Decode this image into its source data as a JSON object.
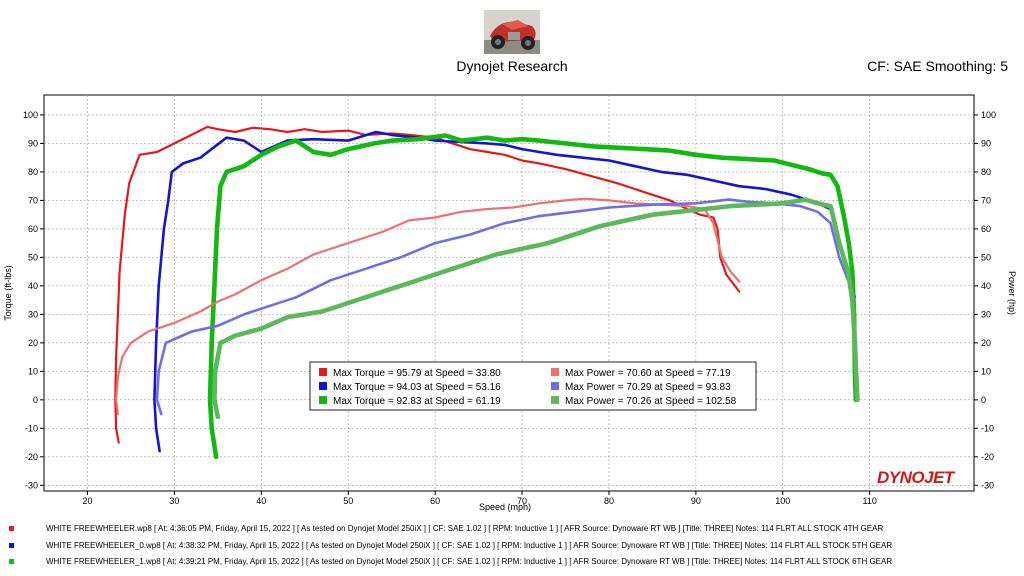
{
  "header": {
    "title": "Dynojet Research",
    "cf_info": "CF: SAE Smoothing: 5"
  },
  "logo_text": "DYNOJET",
  "colors": {
    "torque": [
      "#e41a1a",
      "#1414d2",
      "#14b814"
    ],
    "power": [
      "#f07070",
      "#6e6ee8",
      "#5cb85c"
    ]
  },
  "chart_data": {
    "type": "line",
    "xlabel": "Speed (mph)",
    "ylabel_left": "Torque (ft-lbs)",
    "ylabel_right": "Power (hp)",
    "xlim": [
      15,
      122
    ],
    "ylim": [
      -32,
      107
    ],
    "xticks": [
      20,
      30,
      40,
      50,
      60,
      70,
      80,
      90,
      100,
      110
    ],
    "yticks": [
      -30,
      -20,
      -10,
      0,
      10,
      20,
      30,
      40,
      50,
      60,
      70,
      80,
      90,
      100
    ],
    "grid": true,
    "series": [
      {
        "kind": "torque",
        "points": [
          [
            23.6,
            -15
          ],
          [
            23.3,
            -10
          ],
          [
            23.2,
            0
          ],
          [
            23.3,
            15
          ],
          [
            23.5,
            30
          ],
          [
            23.7,
            45
          ],
          [
            24.3,
            65
          ],
          [
            24.8,
            76
          ],
          [
            26,
            86
          ],
          [
            28,
            87
          ],
          [
            30,
            90
          ],
          [
            33.8,
            95.8
          ],
          [
            35,
            95
          ],
          [
            37,
            94
          ],
          [
            39,
            95.5
          ],
          [
            41,
            95
          ],
          [
            43,
            94
          ],
          [
            45,
            95
          ],
          [
            47,
            94
          ],
          [
            50,
            94.5
          ],
          [
            52,
            93
          ],
          [
            55,
            93.5
          ],
          [
            57,
            93
          ],
          [
            60,
            92
          ],
          [
            62,
            90
          ],
          [
            64,
            88
          ],
          [
            66,
            87
          ],
          [
            68,
            86
          ],
          [
            70,
            84
          ],
          [
            72,
            83
          ],
          [
            75,
            81
          ],
          [
            78,
            78.5
          ],
          [
            81,
            76
          ],
          [
            84,
            73
          ],
          [
            87,
            70
          ],
          [
            89,
            67
          ],
          [
            90.5,
            65
          ],
          [
            92,
            64
          ],
          [
            92.5,
            60
          ],
          [
            92.8,
            50
          ],
          [
            93.5,
            44
          ],
          [
            94.5,
            40
          ],
          [
            95,
            38
          ]
        ]
      },
      {
        "kind": "torque",
        "points": [
          [
            28.3,
            -18
          ],
          [
            27.9,
            -10
          ],
          [
            27.7,
            0
          ],
          [
            27.9,
            20
          ],
          [
            28.2,
            40
          ],
          [
            28.8,
            60
          ],
          [
            29.3,
            70
          ],
          [
            29.7,
            80
          ],
          [
            31,
            83
          ],
          [
            33,
            85
          ],
          [
            36,
            92
          ],
          [
            38,
            91
          ],
          [
            40,
            87
          ],
          [
            43,
            91
          ],
          [
            46,
            91.5
          ],
          [
            50,
            91
          ],
          [
            53.2,
            94
          ],
          [
            55,
            93
          ],
          [
            58,
            92
          ],
          [
            60,
            91
          ],
          [
            63,
            90.5
          ],
          [
            66,
            90
          ],
          [
            68,
            89.5
          ],
          [
            70,
            88
          ],
          [
            72,
            87
          ],
          [
            74,
            86
          ],
          [
            77,
            85
          ],
          [
            80,
            84
          ],
          [
            83,
            82
          ],
          [
            86,
            80
          ],
          [
            89,
            79
          ],
          [
            92,
            77
          ],
          [
            95,
            75
          ],
          [
            98,
            74
          ],
          [
            101,
            72
          ],
          [
            104,
            69
          ],
          [
            105.5,
            67
          ],
          [
            106.5,
            55
          ],
          [
            107.5,
            45
          ],
          [
            108,
            39
          ],
          [
            108.3,
            36
          ]
        ]
      },
      {
        "kind": "torque",
        "points": [
          [
            34.8,
            -20
          ],
          [
            34.3,
            -10
          ],
          [
            34.1,
            0
          ],
          [
            34.3,
            20
          ],
          [
            34.6,
            40
          ],
          [
            34.9,
            60
          ],
          [
            35.3,
            75
          ],
          [
            36,
            80
          ],
          [
            38,
            82
          ],
          [
            40,
            86
          ],
          [
            42,
            89
          ],
          [
            44,
            91
          ],
          [
            46,
            87
          ],
          [
            48,
            86
          ],
          [
            50,
            88
          ],
          [
            53,
            90
          ],
          [
            55,
            91
          ],
          [
            58,
            91.5
          ],
          [
            61.2,
            92.8
          ],
          [
            63,
            91
          ],
          [
            66,
            92
          ],
          [
            68,
            91
          ],
          [
            70,
            91.5
          ],
          [
            72,
            91
          ],
          [
            75,
            90
          ],
          [
            78,
            89
          ],
          [
            81,
            88.5
          ],
          [
            84,
            88
          ],
          [
            87,
            87.5
          ],
          [
            90,
            86
          ],
          [
            93,
            85
          ],
          [
            96,
            84.5
          ],
          [
            99,
            84
          ],
          [
            101,
            82.5
          ],
          [
            103,
            81
          ],
          [
            104.5,
            79.5
          ],
          [
            105.5,
            79
          ],
          [
            106.3,
            75
          ],
          [
            107,
            65
          ],
          [
            107.6,
            55
          ],
          [
            108,
            45
          ],
          [
            108.2,
            30
          ],
          [
            108.3,
            10
          ],
          [
            108.4,
            0
          ]
        ]
      },
      {
        "kind": "power",
        "points": [
          [
            23.5,
            -5
          ],
          [
            23.3,
            0
          ],
          [
            23.5,
            8
          ],
          [
            24,
            15
          ],
          [
            25,
            20
          ],
          [
            27,
            24
          ],
          [
            30,
            27
          ],
          [
            33,
            31
          ],
          [
            35,
            34.5
          ],
          [
            37,
            37
          ],
          [
            40,
            42
          ],
          [
            43,
            46
          ],
          [
            46,
            51
          ],
          [
            50,
            55
          ],
          [
            54,
            59
          ],
          [
            57,
            63
          ],
          [
            60,
            64
          ],
          [
            63,
            66
          ],
          [
            66,
            67
          ],
          [
            69,
            67.5
          ],
          [
            72,
            69
          ],
          [
            75,
            70
          ],
          [
            77.2,
            70.6
          ],
          [
            80,
            70
          ],
          [
            83,
            69
          ],
          [
            86,
            68.5
          ],
          [
            89,
            68
          ],
          [
            91,
            67
          ],
          [
            92,
            62
          ],
          [
            93,
            50
          ],
          [
            94,
            45
          ],
          [
            95,
            41.5
          ]
        ]
      },
      {
        "kind": "power",
        "points": [
          [
            28.5,
            -5
          ],
          [
            28,
            0
          ],
          [
            28.2,
            10
          ],
          [
            29,
            20
          ],
          [
            32,
            24
          ],
          [
            35,
            26
          ],
          [
            38,
            30
          ],
          [
            41,
            33
          ],
          [
            44,
            36
          ],
          [
            48,
            42
          ],
          [
            52,
            46
          ],
          [
            56,
            50
          ],
          [
            60,
            55
          ],
          [
            64,
            58
          ],
          [
            68,
            62
          ],
          [
            72,
            64.5
          ],
          [
            76,
            66
          ],
          [
            80,
            67.5
          ],
          [
            85,
            68.5
          ],
          [
            90,
            69
          ],
          [
            93.8,
            70.3
          ],
          [
            96,
            69.5
          ],
          [
            99,
            69
          ],
          [
            102,
            68
          ],
          [
            104,
            66
          ],
          [
            105.5,
            62
          ],
          [
            106.5,
            50
          ],
          [
            107.5,
            42
          ],
          [
            108.2,
            36
          ]
        ]
      },
      {
        "kind": "power",
        "points": [
          [
            35,
            -6
          ],
          [
            34.6,
            0
          ],
          [
            34.7,
            10
          ],
          [
            35.3,
            20
          ],
          [
            37,
            22.5
          ],
          [
            40,
            25
          ],
          [
            43,
            29
          ],
          [
            47,
            31
          ],
          [
            50,
            34
          ],
          [
            53,
            37
          ],
          [
            56,
            40
          ],
          [
            60,
            44
          ],
          [
            64,
            48
          ],
          [
            67,
            51
          ],
          [
            70,
            53
          ],
          [
            73,
            55
          ],
          [
            76,
            58
          ],
          [
            79,
            61
          ],
          [
            82,
            63
          ],
          [
            85,
            65
          ],
          [
            88,
            66
          ],
          [
            91,
            67
          ],
          [
            94,
            68
          ],
          [
            97,
            68.5
          ],
          [
            100,
            69
          ],
          [
            102.6,
            70.3
          ],
          [
            104,
            69
          ],
          [
            105.5,
            68
          ],
          [
            106.5,
            55
          ],
          [
            107.5,
            45
          ],
          [
            108,
            35
          ],
          [
            108.3,
            20
          ],
          [
            108.5,
            5
          ],
          [
            108.6,
            0
          ]
        ]
      }
    ],
    "legend": {
      "placement": "bottom-center",
      "torque": [
        "Max Torque = 95.79 at Speed = 33.80",
        "Max Torque = 94.03 at Speed = 53.16",
        "Max Torque = 92.83 at Speed = 61.19"
      ],
      "power": [
        "Max Power = 70.60 at Speed = 77.19",
        "Max Power = 70.29 at Speed = 93.83",
        "Max Power = 70.26 at Speed = 102.58"
      ]
    }
  },
  "footer": {
    "runs": [
      "WHITE FREEWHEELER.wp8 [ At: 4:36:05 PM, Friday, April 15, 2022 ] [ As tested on Dynojet Model 250iX ] [ CF: SAE 1.02 ] [ RPM: Inductive 1 ] [ AFR Source: Dynoware RT WB ] [Title: THREE]  Notes: 114 FLRT ALL STOCK 4TH GEAR",
      "WHITE FREEWHEELER_0.wp8 [ At: 4:38:32 PM, Friday, April 15, 2022 ] [ As tested on Dynojet Model 250iX ] [ CF: SAE 1.02 ] [ RPM: Inductive 1 ] [ AFR Source: Dynoware RT WB ] [Title: THREE]  Notes: 114 FLRT ALL STOCK 5TH GEAR",
      "WHITE FREEWHEELER_1.wp8 [ At: 4:39:21 PM, Friday, April 15, 2022 ] [ As tested on Dynojet Model 250iX ] [ CF: SAE 1.02 ] [ RPM: Inductive 1 ] [ AFR Source: Dynoware RT WB ] [Title: THREE]  Notes: 114 FLRT ALL STOCK 6TH GEAR"
    ]
  }
}
